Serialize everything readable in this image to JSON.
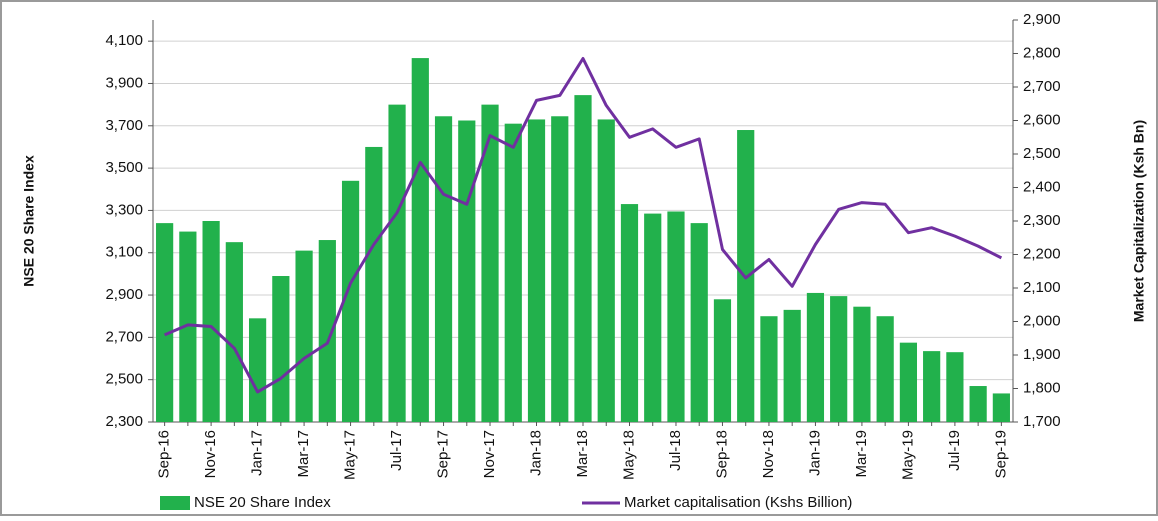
{
  "chart_data": {
    "type": "combo",
    "categories": [
      "Sep-16",
      null,
      "Nov-16",
      null,
      "Jan-17",
      null,
      "Mar-17",
      null,
      "May-17",
      null,
      "Jul-17",
      null,
      "Sep-17",
      null,
      "Nov-17",
      null,
      "Jan-18",
      null,
      "Mar-18",
      null,
      "May-18",
      null,
      "Jul-18",
      null,
      "Sep-18",
      null,
      "Nov-18",
      null,
      "Jan-19",
      null,
      "Mar-19",
      null,
      "May-19",
      null,
      "Jul-19",
      null,
      "Sep-19"
    ],
    "series": [
      {
        "name": "NSE 20 Share Index",
        "type": "bar",
        "color": "#22b14c",
        "values": [
          3240,
          3200,
          3250,
          3150,
          2790,
          2990,
          3110,
          3160,
          3440,
          3600,
          3800,
          4020,
          3745,
          3725,
          3800,
          3710,
          3730,
          3745,
          3845,
          3730,
          3330,
          3285,
          3295,
          3240,
          2880,
          3680,
          2800,
          2830,
          2910,
          2895,
          2845,
          2800,
          2675,
          2635,
          2630,
          2470,
          2435
        ]
      },
      {
        "name": "Market capitalisation (Kshs Billion)",
        "type": "line",
        "axis": "y2",
        "color": "#7030a0",
        "values": [
          1960,
          1990,
          1985,
          1920,
          1790,
          1830,
          1890,
          1935,
          2115,
          2230,
          2325,
          2475,
          2380,
          2350,
          2555,
          2520,
          2660,
          2675,
          2785,
          2645,
          2550,
          2575,
          2520,
          2545,
          2215,
          2130,
          2185,
          2105,
          2230,
          2335,
          2355,
          2350,
          2265,
          2280,
          2255,
          2225,
          2190
        ]
      }
    ],
    "ylabel": "NSE 20 Share Index",
    "y2label": "Market Capitalization (Ksh Bn)",
    "ylim": [
      2300,
      4200
    ],
    "yticks": [
      {
        "value": 2300,
        "label": "2,300"
      },
      {
        "value": 2500,
        "label": "2,500"
      },
      {
        "value": 2700,
        "label": "2,700"
      },
      {
        "value": 2900,
        "label": "2,900"
      },
      {
        "value": 3100,
        "label": "3,100"
      },
      {
        "value": 3300,
        "label": "3,300"
      },
      {
        "value": 3500,
        "label": "3,500"
      },
      {
        "value": 3700,
        "label": "3,700"
      },
      {
        "value": 3900,
        "label": "3,900"
      },
      {
        "value": 4100,
        "label": "4,100"
      }
    ],
    "y2lim": [
      1700,
      2900
    ],
    "y2ticks": [
      {
        "value": 1700,
        "label": "1,700"
      },
      {
        "value": 1800,
        "label": "1,800"
      },
      {
        "value": 1900,
        "label": "1,900"
      },
      {
        "value": 2000,
        "label": "2,000"
      },
      {
        "value": 2100,
        "label": "2,100"
      },
      {
        "value": 2200,
        "label": "2,200"
      },
      {
        "value": 2300,
        "label": "2,300"
      },
      {
        "value": 2400,
        "label": "2,400"
      },
      {
        "value": 2500,
        "label": "2,500"
      },
      {
        "value": 2600,
        "label": "2,600"
      },
      {
        "value": 2700,
        "label": "2,700"
      },
      {
        "value": 2800,
        "label": "2,800"
      },
      {
        "value": 2900,
        "label": "2,900"
      }
    ],
    "grid": true,
    "legend": "bottom"
  }
}
